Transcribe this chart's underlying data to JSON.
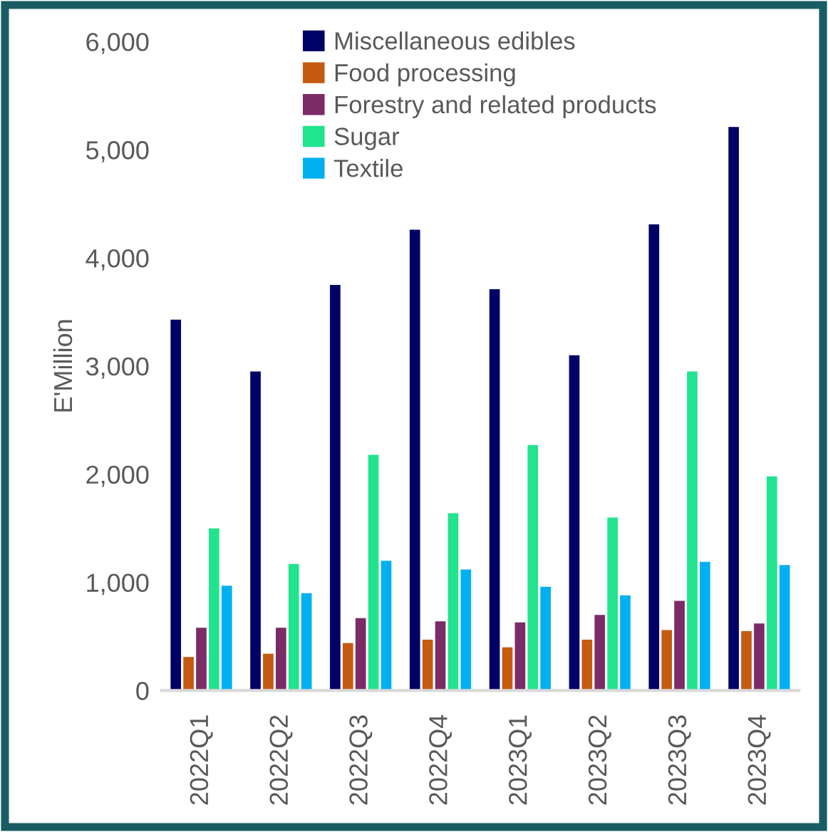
{
  "chart_data": {
    "type": "bar",
    "ylabel": "E'Million",
    "categories": [
      "2022Q1",
      "2022Q2",
      "2022Q3",
      "2022Q4",
      "2023Q1",
      "2023Q2",
      "2023Q3",
      "2023Q4"
    ],
    "series": [
      {
        "name": "Miscellaneous edibles",
        "color": "#000066",
        "values": [
          3430,
          2950,
          3750,
          4260,
          3710,
          3100,
          4310,
          5210
        ]
      },
      {
        "name": "Food processing",
        "color": "#c55a11",
        "values": [
          310,
          340,
          440,
          470,
          400,
          470,
          560,
          550
        ]
      },
      {
        "name": "Forestry and related products",
        "color": "#7b2c66",
        "values": [
          580,
          580,
          670,
          640,
          630,
          700,
          830,
          620
        ]
      },
      {
        "name": "Sugar",
        "color": "#22e38e",
        "values": [
          1500,
          1170,
          2180,
          1640,
          2270,
          1600,
          2950,
          1980
        ]
      },
      {
        "name": "Textile",
        "color": "#00b0f0",
        "values": [
          970,
          900,
          1200,
          1120,
          960,
          880,
          1190,
          1160
        ]
      }
    ],
    "ylim": [
      0,
      6000
    ],
    "yticks": [
      {
        "value": 0,
        "label": "0"
      },
      {
        "value": 1000,
        "label": "1,000"
      },
      {
        "value": 2000,
        "label": "2,000"
      },
      {
        "value": 3000,
        "label": "3,000"
      },
      {
        "value": 4000,
        "label": "4,000"
      },
      {
        "value": 5000,
        "label": "5,000"
      },
      {
        "value": 6000,
        "label": "6,000"
      }
    ],
    "grid": false,
    "legend": "top"
  }
}
